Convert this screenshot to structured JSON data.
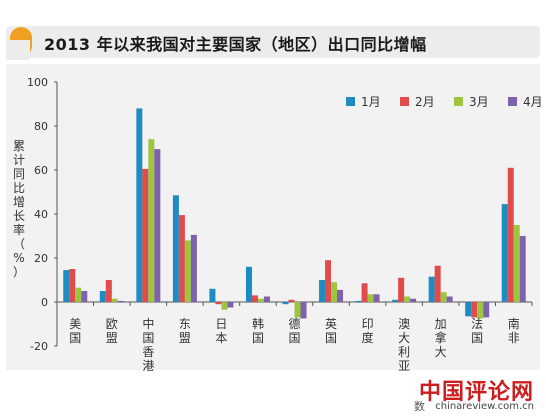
{
  "header": {
    "title": "2013 年以来我国对主要国家（地区）出口同比增幅",
    "accent": "#f0a020"
  },
  "watermark": {
    "logo_text": "中国评论网",
    "url": "chinareview.com.cn",
    "partial_text": "数"
  },
  "chart_data": {
    "type": "bar",
    "title": "",
    "ylabel": "累计同比增长率（%）",
    "xlabel": "",
    "ylim": [
      -20,
      100
    ],
    "yticks": [
      "100",
      "80",
      "60",
      "40",
      "20",
      "0",
      "-20"
    ],
    "grid": false,
    "legend_position": "top-right",
    "categories": [
      "美国",
      "欧盟",
      "中国香港",
      "东盟",
      "日本",
      "韩国",
      "德国",
      "英国",
      "印度",
      "澳大利亚",
      "加拿大",
      "法国",
      "南非"
    ],
    "series": [
      {
        "name": "1月",
        "color": "#1e8bc3",
        "values": [
          14.5,
          5,
          88,
          48.5,
          6,
          16,
          -1,
          10,
          0.5,
          1,
          11.5,
          -6.5,
          44.5
        ]
      },
      {
        "name": "2月",
        "color": "#e04b4b",
        "values": [
          15,
          10,
          60.5,
          39.5,
          -1,
          3,
          1,
          19,
          8.5,
          11,
          16.5,
          -7,
          61
        ]
      },
      {
        "name": "3月",
        "color": "#9dc540",
        "values": [
          6.5,
          1.5,
          74,
          28,
          -3.5,
          1.5,
          -7,
          9,
          3.5,
          2.5,
          4.5,
          -7.5,
          35
        ]
      },
      {
        "name": "4月",
        "color": "#7f62ac",
        "values": [
          5,
          0.5,
          69.5,
          30.5,
          -2.5,
          2.5,
          -7.5,
          5.5,
          3.5,
          1.5,
          2.5,
          -7,
          30
        ]
      }
    ]
  }
}
